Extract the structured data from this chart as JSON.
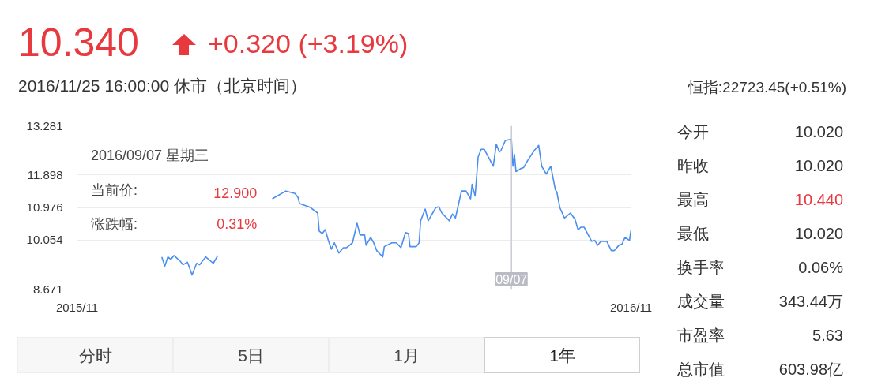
{
  "chart_data": {
    "type": "line",
    "title": "10.340",
    "subtitle": "+0.320 (+3.19%)",
    "annotations": [
      "2016/11/25 16:00:00 休市（北京时间）",
      "恒指:22723.45(+0.51%)",
      "2016/09/07 星期三",
      "当前价:",
      "12.900",
      "涨跌幅:",
      "0.31%",
      "今开",
      "10.020",
      "昨收",
      "10.020",
      "最高",
      "10.440",
      "最低",
      "10.020",
      "换手率",
      "0.06%",
      "成交量",
      "343.44万",
      "市盈率",
      "5.63",
      "总市值",
      "603.98亿",
      "分时",
      "5日",
      "1月",
      "1年"
    ],
    "x": [
      "2016-01-20",
      "2016-01-22",
      "2016-01-24",
      "2016-01-26",
      "2016-01-28",
      "2016-02-01",
      "2016-02-03",
      "2016-02-06",
      "2016-02-09",
      "2016-02-12",
      "2016-02-14",
      "2016-02-18",
      "2016-02-20",
      "2016-02-23",
      "2016-02-26",
      "2016-03-15",
      "2016-04-02",
      "2016-04-11",
      "2016-04-17",
      "2016-04-19",
      "2016-04-20",
      "2016-04-27",
      "2016-05-02",
      "2016-05-03",
      "2016-05-05",
      "2016-05-07",
      "2016-05-09",
      "2016-05-11",
      "2016-05-13",
      "2016-05-16",
      "2016-05-19",
      "2016-05-21",
      "2016-05-25",
      "2016-05-28",
      "2016-05-30",
      "2016-06-02",
      "2016-06-03",
      "2016-06-06",
      "2016-06-08",
      "2016-06-10",
      "2016-06-14",
      "2016-06-15",
      "2016-06-20",
      "2016-06-23",
      "2016-06-26",
      "2016-06-29",
      "2016-07-01",
      "2016-07-02",
      "2016-07-06",
      "2016-07-08",
      "2016-07-09",
      "2016-07-12",
      "2016-07-14",
      "2016-07-19",
      "2016-07-21",
      "2016-07-23",
      "2016-07-28",
      "2016-07-30",
      "2016-08-01",
      "2016-08-05",
      "2016-08-08",
      "2016-08-11",
      "2016-08-12",
      "2016-08-14",
      "2016-08-16",
      "2016-08-18",
      "2016-08-20",
      "2016-08-26",
      "2016-08-28",
      "2016-08-30",
      "2016-08-31",
      "2016-09-03",
      "2016-09-07",
      "2016-09-08",
      "2016-09-09",
      "2016-09-10",
      "2016-09-13",
      "2016-09-15",
      "2016-09-18",
      "2016-09-22",
      "2016-09-25",
      "2016-09-27",
      "2016-09-30",
      "2016-10-03",
      "2016-10-06",
      "2016-10-07",
      "2016-10-09",
      "2016-10-12",
      "2016-10-13",
      "2016-10-16",
      "2016-10-19",
      "2016-10-21",
      "2016-10-23",
      "2016-10-25",
      "2016-10-30",
      "2016-11-01",
      "2016-11-03",
      "2016-11-05",
      "2016-11-09",
      "2016-11-12",
      "2016-11-14",
      "2016-11-17",
      "2016-11-19",
      "2016-11-21",
      "2016-11-24",
      "2016-11-25"
    ],
    "values": [
      9.58,
      9.32,
      9.58,
      9.51,
      9.62,
      9.47,
      9.36,
      9.43,
      9.07,
      9.4,
      9.36,
      9.58,
      9.51,
      9.4,
      9.62,
      null,
      11.22,
      11.44,
      11.37,
      11.26,
      11.09,
      10.98,
      10.82,
      10.31,
      10.24,
      10.35,
      10.05,
      9.8,
      9.98,
      9.69,
      9.84,
      9.84,
      9.98,
      10.53,
      10.2,
      10.2,
      9.91,
      10.13,
      9.98,
      9.76,
      9.58,
      9.87,
      9.98,
      9.98,
      9.84,
      10.27,
      10.24,
      9.87,
      9.87,
      9.98,
      10.6,
      10.93,
      10.6,
      10.97,
      11.0,
      10.82,
      10.6,
      10.79,
      10.68,
      11.44,
      11.44,
      11.22,
      11.63,
      11.3,
      12.4,
      12.62,
      12.62,
      12.14,
      12.76,
      12.54,
      12.58,
      12.87,
      12.9,
      12.14,
      12.47,
      11.99,
      12.07,
      12.1,
      12.32,
      12.58,
      12.73,
      12.14,
      11.92,
      12.14,
      11.48,
      11.41,
      10.97,
      10.68,
      10.71,
      10.82,
      10.64,
      10.35,
      10.42,
      10.42,
      10.02,
      10.05,
      9.91,
      10.02,
      10.02,
      9.76,
      9.76,
      9.91,
      9.94,
      10.13,
      10.05,
      10.34
    ],
    "color": "#4a8ef0",
    "xlim": [
      "2015-11-25",
      "2016-11-25"
    ],
    "xticks": [
      {
        "value": "2015-11-25",
        "label": "2015/11"
      },
      {
        "value": "2016-11-25",
        "label": "2016/11"
      }
    ],
    "ylim": [
      8.671,
      13.281
    ],
    "yticks": [
      13.281,
      11.898,
      10.976,
      10.054,
      8.671
    ],
    "grid": "y",
    "ref_lines": [
      {
        "axis": "x",
        "value": "2016-09-07",
        "label": "09/07",
        "color": "#c8cbd2"
      }
    ]
  }
}
